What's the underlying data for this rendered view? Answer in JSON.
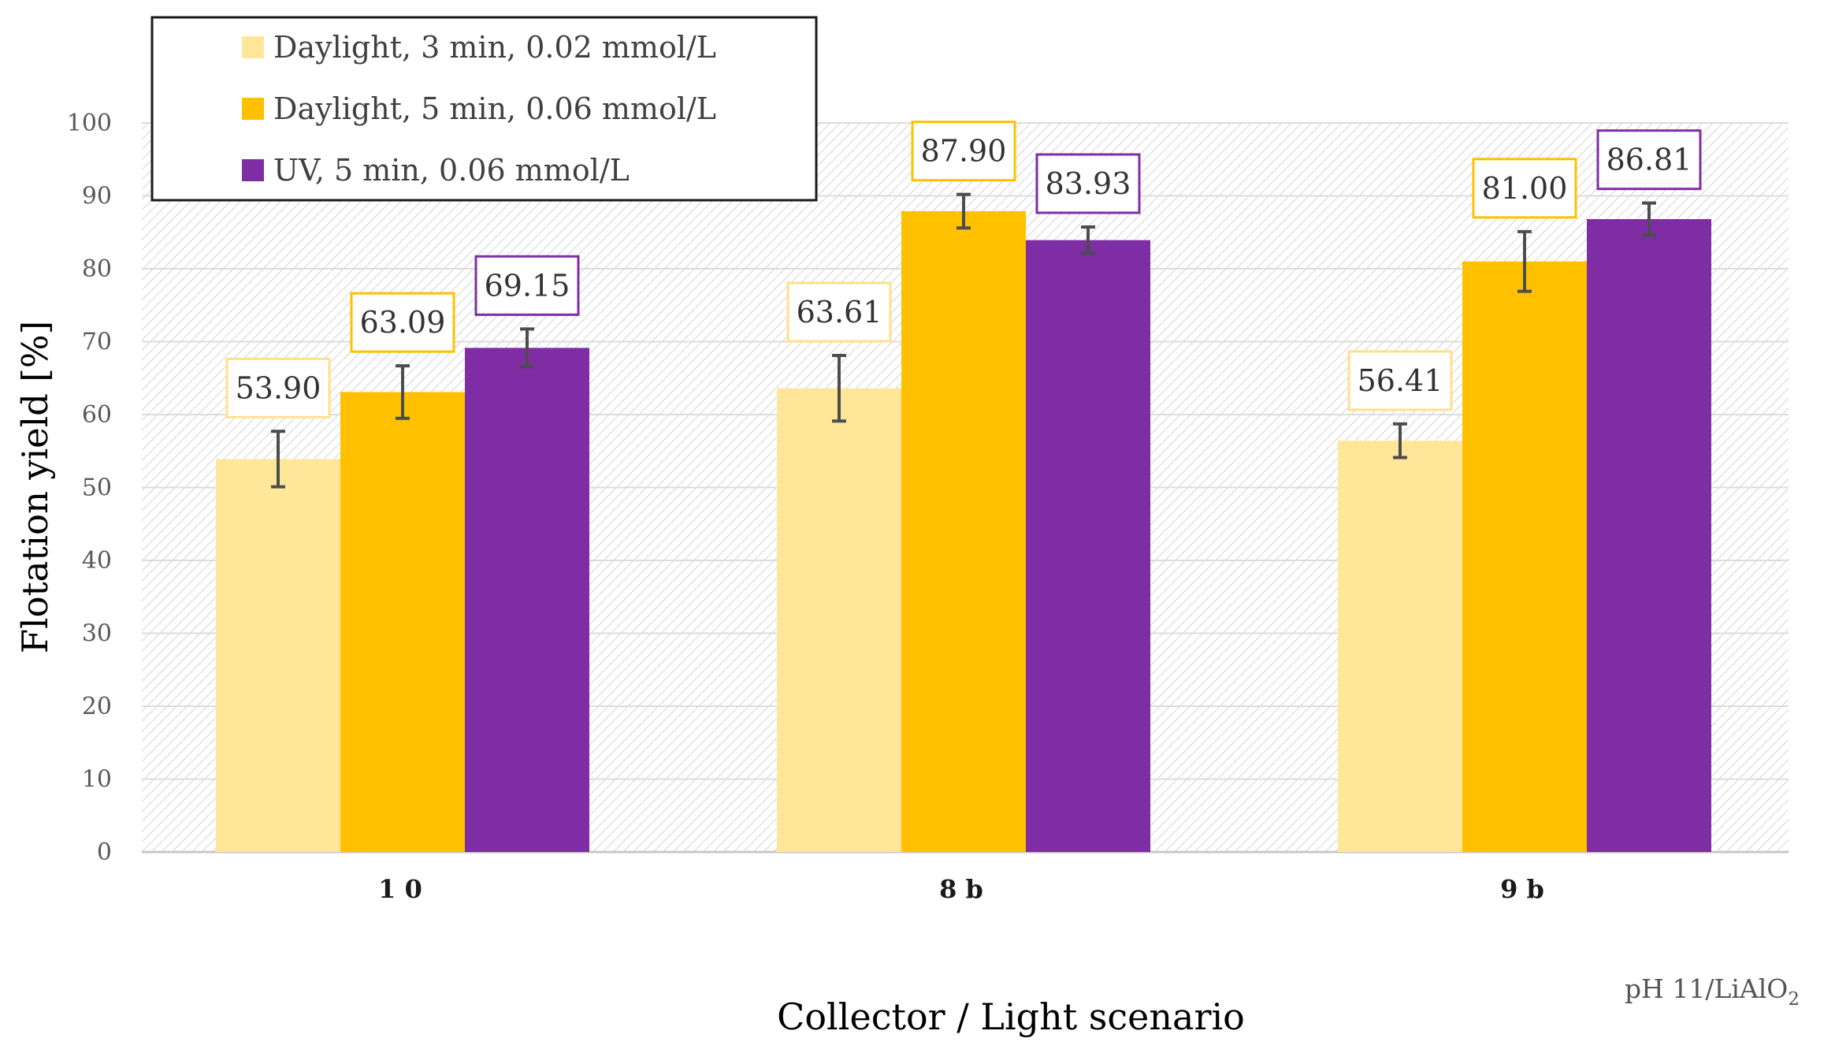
{
  "chart_data": {
    "type": "bar",
    "categories": [
      "1 0",
      "8 b",
      "9 b"
    ],
    "series": [
      {
        "name": "Daylight, 3 min, 0.02 mmol/L",
        "color": "#FFE699",
        "values": [
          53.9,
          63.61,
          56.41
        ],
        "labels": [
          "53.90",
          "63.61",
          "56.41"
        ],
        "errors": [
          3.8,
          4.5,
          2.3
        ]
      },
      {
        "name": "Daylight, 5 min, 0.06 mmol/L",
        "color": "#FFC000",
        "values": [
          63.09,
          87.9,
          81.0
        ],
        "labels": [
          "63.09",
          "87.90",
          "81.00"
        ],
        "errors": [
          3.6,
          2.3,
          4.1
        ]
      },
      {
        "name": "UV, 5 min, 0.06 mmol/L",
        "color": "#7F2DA4",
        "values": [
          69.15,
          83.93,
          86.81
        ],
        "labels": [
          "69.15",
          "83.93",
          "86.81"
        ],
        "errors": [
          2.6,
          1.8,
          2.2
        ]
      }
    ],
    "title": "",
    "xlabel": "Collector / Light scenario",
    "ylabel": "Flotation yield [%]",
    "ylim": [
      0,
      100
    ],
    "yticks": [
      0,
      10,
      20,
      30,
      40,
      50,
      60,
      70,
      80,
      90,
      100
    ],
    "grid": true,
    "legend_position": "top-left",
    "annotation": {
      "main": "pH 11/LiAlO",
      "subscript": "2"
    }
  }
}
